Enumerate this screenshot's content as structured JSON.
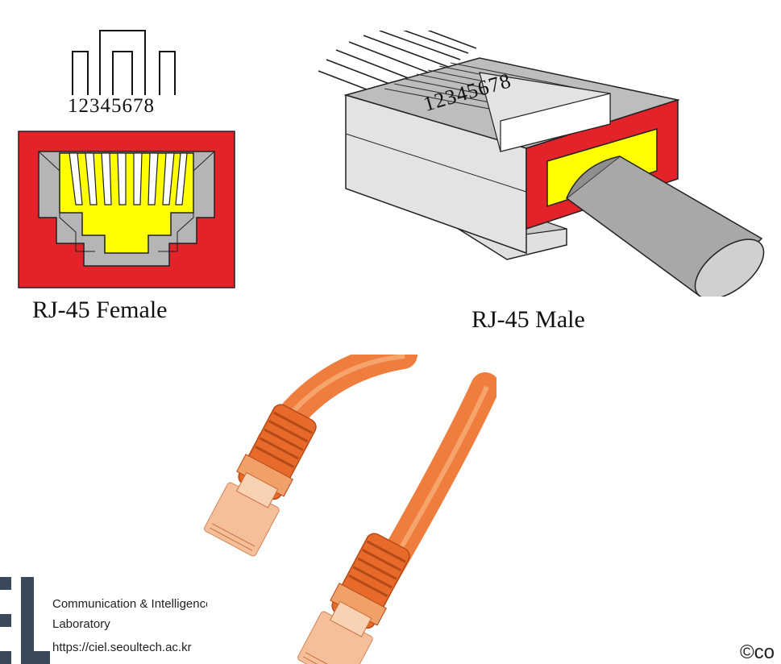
{
  "female": {
    "caption": "RJ-45 Female",
    "pin_numbers": "12345678",
    "colors": {
      "housing": "#e4222a",
      "contacts": "#ffff00",
      "gray": "#b5b5b5"
    }
  },
  "male": {
    "caption": "RJ-45 Male",
    "pin_numbers": "12345678",
    "colors": {
      "body": "#e3e3e3",
      "frame": "#e4222a",
      "inset": "#ffff00",
      "cable": "#a0a0a0"
    }
  },
  "photo": {
    "subject": "orange-ethernet-cables",
    "cable_color": "#f07a3a"
  },
  "logo": {
    "mark": "EL",
    "line1": "Communication & Intelligence",
    "line2": "Laboratory",
    "line3": "https://ciel.seoultech.ac.kr"
  },
  "footer": {
    "copyright": "©co"
  }
}
